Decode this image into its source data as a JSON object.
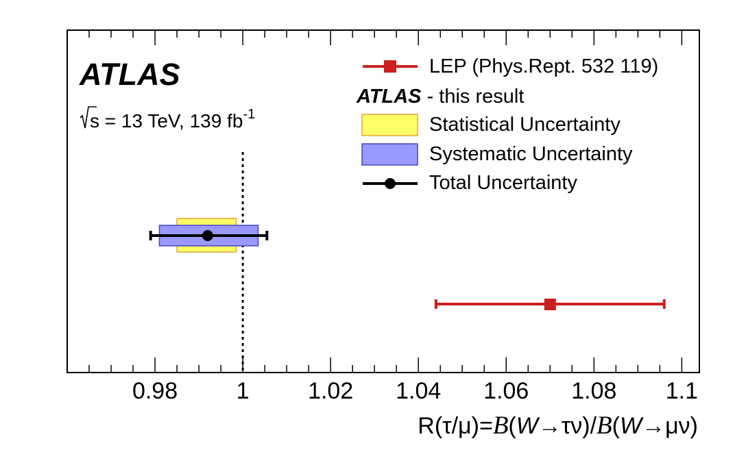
{
  "chart_data": {
    "type": "scatter",
    "experiment_label": "ATLAS",
    "energy_label": "s = 13 TeV, 139 fb",
    "energy_sup": "-1",
    "xlim": [
      0.96,
      1.104
    ],
    "x_ticks": [
      0.98,
      1.0,
      1.02,
      1.04,
      1.06,
      1.08,
      1.1
    ],
    "x_tick_labels": [
      "0.98",
      "1",
      "1.02",
      "1.04",
      "1.06",
      "1.08",
      "1.1"
    ],
    "reference_line_x": 1.0,
    "xlabel": {
      "lhs": "R(τ/μ)=",
      "b1": "B",
      "p1": "(",
      "w1": "W",
      "d1": "→τν)/",
      "b2": "B",
      "p2": "(",
      "w2": "W",
      "d2": "→μν)"
    },
    "series": [
      {
        "name": "ATLAS",
        "value": 0.992,
        "stat_range": [
          0.985,
          0.9985
        ],
        "syst_range": [
          0.981,
          1.0035
        ],
        "total_range": [
          0.979,
          1.0055
        ],
        "marker": "circle",
        "color": "#000000",
        "stat_color": "#ffff66",
        "syst_color": "#9999ff"
      },
      {
        "name": "LEP",
        "value": 1.07,
        "total_range": [
          1.044,
          1.096
        ],
        "marker": "square",
        "color": "#cc1f1f"
      }
    ],
    "legend": {
      "lep": "LEP (Phys.Rept. 532 119)",
      "atlas_prefix": "ATLAS",
      "atlas_suffix": " - this result",
      "stat": "Statistical Uncertainty",
      "syst": "Systematic Uncertainty",
      "total": "Total Uncertainty"
    }
  }
}
